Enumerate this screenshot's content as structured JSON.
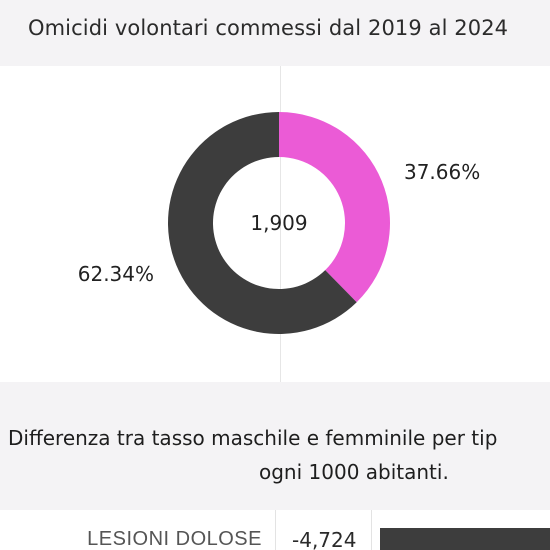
{
  "header": {
    "title": "Omicidi volontari commessi dal 2019 al 2024"
  },
  "chart_data": {
    "type": "pie",
    "donut": true,
    "center_label": "1,909",
    "slices": [
      {
        "value": 37.66,
        "label": "37.66%",
        "color": "#eb5bd6"
      },
      {
        "value": 62.34,
        "label": "62.34%",
        "color": "#3d3d3d"
      }
    ]
  },
  "section2": {
    "title_line1": "Differenza tra tasso maschile e femminile per tip",
    "title_line2": "ogni 1000 abitanti."
  },
  "table": {
    "rows": [
      {
        "label": "LESIONI DOLOSE",
        "value": "-4,724",
        "bar_color": "#3d3d3d"
      }
    ]
  }
}
